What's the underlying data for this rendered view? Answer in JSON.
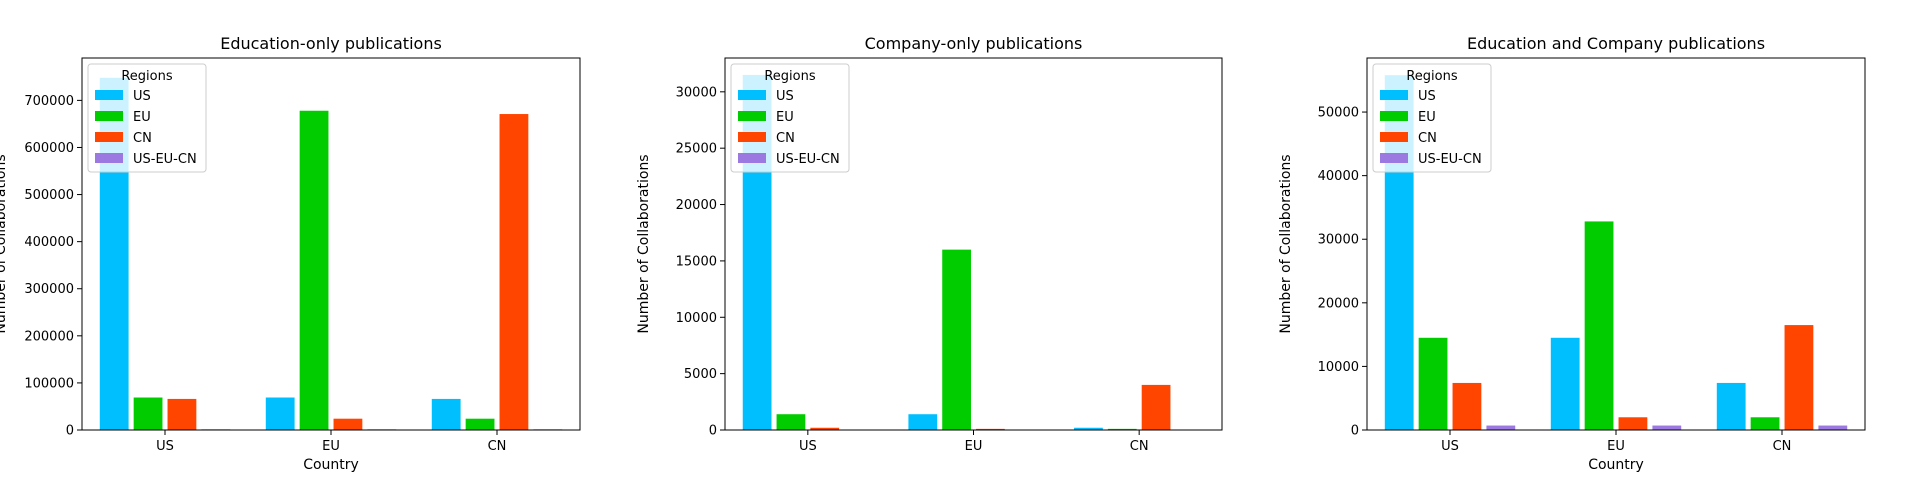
{
  "chart_data": [
    {
      "type": "bar",
      "title": "Education-only publications",
      "xlabel": "Country",
      "ylabel": "Number of Collaborations",
      "categories": [
        "US",
        "EU",
        "CN"
      ],
      "ylim": [
        0,
        790000
      ],
      "yticks": [
        0,
        100000,
        200000,
        300000,
        400000,
        500000,
        600000,
        700000
      ],
      "legend": {
        "title": "Regions",
        "placement": "upper-left"
      },
      "series": [
        {
          "name": "US",
          "values": [
            748000,
            69000,
            66000
          ]
        },
        {
          "name": "EU",
          "values": [
            69000,
            678000,
            24000
          ]
        },
        {
          "name": "CN",
          "values": [
            66000,
            24000,
            671000
          ]
        },
        {
          "name": "US-EU-CN",
          "values": [
            1500,
            1500,
            1500
          ]
        }
      ]
    },
    {
      "type": "bar",
      "title": "Company-only publications",
      "xlabel": "",
      "ylabel": "Number of Collaborations",
      "categories": [
        "US",
        "EU",
        "CN"
      ],
      "ylim": [
        0,
        33000
      ],
      "yticks": [
        0,
        5000,
        10000,
        15000,
        20000,
        25000,
        30000
      ],
      "legend": {
        "title": "Regions",
        "placement": "upper-left"
      },
      "series": [
        {
          "name": "US",
          "values": [
            31500,
            1400,
            200
          ]
        },
        {
          "name": "EU",
          "values": [
            1400,
            16000,
            100
          ]
        },
        {
          "name": "CN",
          "values": [
            200,
            100,
            4000
          ]
        },
        {
          "name": "US-EU-CN",
          "values": [
            15,
            15,
            15
          ]
        }
      ]
    },
    {
      "type": "bar",
      "title": "Education and Company publications",
      "xlabel": "Country",
      "ylabel": "Number of Collaborations",
      "categories": [
        "US",
        "EU",
        "CN"
      ],
      "ylim": [
        0,
        58500
      ],
      "yticks": [
        0,
        10000,
        20000,
        30000,
        40000,
        50000
      ],
      "legend": {
        "title": "Regions",
        "placement": "upper-left"
      },
      "series": [
        {
          "name": "US",
          "values": [
            55800,
            14500,
            7400
          ]
        },
        {
          "name": "EU",
          "values": [
            14500,
            32800,
            2000
          ]
        },
        {
          "name": "CN",
          "values": [
            7400,
            2000,
            16500
          ]
        },
        {
          "name": "US-EU-CN",
          "values": [
            700,
            700,
            700
          ]
        }
      ]
    }
  ],
  "colors": [
    "#00bfff",
    "#00cc00",
    "#ff4500",
    "#9c79e0"
  ]
}
